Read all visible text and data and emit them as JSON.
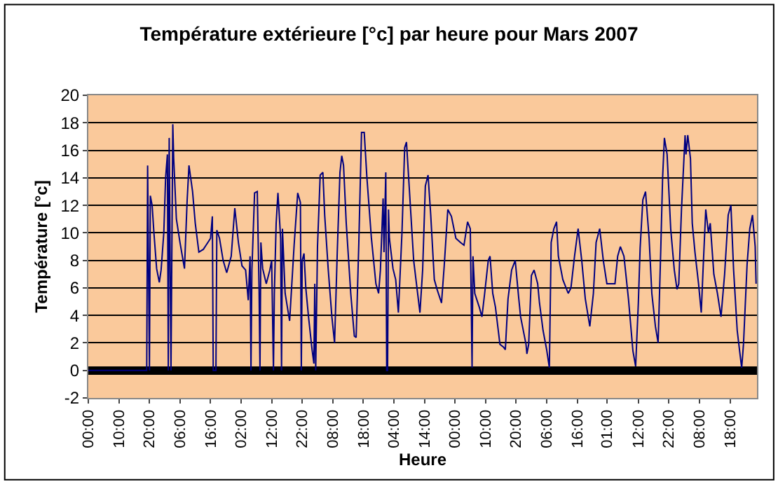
{
  "chart_data": {
    "type": "line",
    "title": "Température extérieure [°c] par heure pour Mars 2007",
    "xlabel": "Heure",
    "ylabel": "Température [°c]",
    "x": [
      "2007-03-01T00:00",
      "2007-03-03T17:00",
      "2007-03-03T18:00",
      "2007-03-03T19:00",
      "2007-03-03T20:00",
      "2007-03-03T21:00",
      "2007-03-03T23:00",
      "2007-03-04T01:00",
      "2007-03-04T04:00",
      "2007-03-04T07:00",
      "2007-03-04T09:00",
      "2007-03-04T12:00",
      "2007-03-04T14:00",
      "2007-03-04T16:00",
      "2007-03-04T17:00",
      "2007-03-04T18:00",
      "2007-03-04T19:00",
      "2007-03-04T20:00",
      "2007-03-04T22:00",
      "2007-03-04T23:00",
      "2007-03-05T02:00",
      "2007-03-05T06:00",
      "2007-03-05T11:00",
      "2007-03-05T14:00",
      "2007-03-05T16:00",
      "2007-03-05T20:00",
      "2007-03-05T23:00",
      "2007-03-06T03:00",
      "2007-03-06T08:00",
      "2007-03-06T11:00",
      "2007-03-06T16:00",
      "2007-03-06T18:00",
      "2007-03-06T19:00",
      "2007-03-06T22:00",
      "2007-03-06T23:00",
      "2007-03-07T02:00",
      "2007-03-07T06:00",
      "2007-03-07T10:00",
      "2007-03-07T15:00",
      "2007-03-07T19:00",
      "2007-03-07T23:00",
      "2007-03-08T03:00",
      "2007-03-08T07:00",
      "2007-03-08T10:00",
      "2007-03-08T12:00",
      "2007-03-08T13:00",
      "2007-03-08T14:00",
      "2007-03-08T17:00",
      "2007-03-08T20:00",
      "2007-03-08T22:00",
      "2007-03-08T23:00",
      "2007-03-09T00:00",
      "2007-03-09T02:00",
      "2007-03-09T06:00",
      "2007-03-09T10:00",
      "2007-03-09T12:00",
      "2007-03-09T14:00",
      "2007-03-09T15:00",
      "2007-03-09T17:00",
      "2007-03-09T19:00",
      "2007-03-09T22:00",
      "2007-03-09T23:00",
      "2007-03-10T00:00",
      "2007-03-10T03:00",
      "2007-03-10T06:00",
      "2007-03-10T08:00",
      "2007-03-10T13:00",
      "2007-03-10T17:00",
      "2007-03-10T20:00",
      "2007-03-10T21:00",
      "2007-03-10T22:00",
      "2007-03-11T00:00",
      "2007-03-11T02:00",
      "2007-03-11T05:00",
      "2007-03-11T09:00",
      "2007-03-11T11:00",
      "2007-03-11T12:00",
      "2007-03-11T13:00",
      "2007-03-11T15:00",
      "2007-03-11T18:00",
      "2007-03-11T21:00",
      "2007-03-11T23:00",
      "2007-03-12T03:00",
      "2007-03-12T07:00",
      "2007-03-12T10:00",
      "2007-03-12T13:00",
      "2007-03-12T16:00",
      "2007-03-12T18:00",
      "2007-03-12T20:00",
      "2007-03-12T23:00",
      "2007-03-13T04:00",
      "2007-03-13T08:00",
      "2007-03-13T10:00",
      "2007-03-13T13:00",
      "2007-03-13T16:00",
      "2007-03-13T19:00",
      "2007-03-13T22:00",
      "2007-03-14T03:00",
      "2007-03-14T08:00",
      "2007-03-14T11:00",
      "2007-03-14T13:00",
      "2007-03-14T16:00",
      "2007-03-14T17:00",
      "2007-03-14T19:00",
      "2007-03-14T20:00",
      "2007-03-14T21:00",
      "2007-03-14T22:00",
      "2007-03-14T23:00",
      "2007-03-15T03:00",
      "2007-03-15T06:00",
      "2007-03-15T09:00",
      "2007-03-15T13:00",
      "2007-03-15T16:00",
      "2007-03-15T18:00",
      "2007-03-15T21:00",
      "2007-03-16T02:00",
      "2007-03-16T09:00",
      "2007-03-16T12:00",
      "2007-03-16T15:00",
      "2007-03-16T18:00",
      "2007-03-16T21:00",
      "2007-03-17T01:00",
      "2007-03-17T04:00",
      "2007-03-17T09:00",
      "2007-03-17T12:00",
      "2007-03-17T16:00",
      "2007-03-17T20:00",
      "2007-03-18T01:00",
      "2007-03-18T06:00",
      "2007-03-18T10:00",
      "2007-03-18T14:00",
      "2007-03-18T17:00",
      "2007-03-18T19:00",
      "2007-03-18T20:00",
      "2007-03-18T22:00",
      "2007-03-19T03:00",
      "2007-03-19T06:00",
      "2007-03-19T09:00",
      "2007-03-19T13:00",
      "2007-03-19T15:00",
      "2007-03-19T18:00",
      "2007-03-19T21:00",
      "2007-03-20T02:00",
      "2007-03-20T06:00",
      "2007-03-20T08:00",
      "2007-03-20T11:00",
      "2007-03-20T15:00",
      "2007-03-20T19:00",
      "2007-03-20T23:00",
      "2007-03-21T01:00",
      "2007-03-21T07:00",
      "2007-03-21T08:00",
      "2007-03-21T10:00",
      "2007-03-21T13:00",
      "2007-03-21T16:00",
      "2007-03-21T20:00",
      "2007-03-21T22:00",
      "2007-03-22T02:00",
      "2007-03-22T06:00",
      "2007-03-22T09:00",
      "2007-03-22T11:00",
      "2007-03-22T14:00",
      "2007-03-22T17:00",
      "2007-03-22T19:00",
      "2007-03-23T00:00",
      "2007-03-23T06:00",
      "2007-03-23T09:00",
      "2007-03-23T13:00",
      "2007-03-23T17:00",
      "2007-03-23T21:00",
      "2007-03-24T01:00",
      "2007-03-24T06:00",
      "2007-03-24T10:00",
      "2007-03-24T13:00",
      "2007-03-24T17:00",
      "2007-03-24T21:00",
      "2007-03-25T01:00",
      "2007-03-25T05:00",
      "2007-03-25T10:00",
      "2007-03-25T13:00",
      "2007-03-25T16:00",
      "2007-03-25T20:00",
      "2007-03-26T01:00",
      "2007-03-26T06:00",
      "2007-03-26T09:00",
      "2007-03-26T12:00",
      "2007-03-26T14:00",
      "2007-03-26T17:00",
      "2007-03-26T20:00",
      "2007-03-27T00:00",
      "2007-03-27T03:00",
      "2007-03-27T07:00",
      "2007-03-27T10:00",
      "2007-03-27T13:00",
      "2007-03-27T15:00",
      "2007-03-27T17:00",
      "2007-03-27T20:00",
      "2007-03-28T00:00",
      "2007-03-28T04:00",
      "2007-03-28T07:00",
      "2007-03-28T09:00",
      "2007-03-28T12:00",
      "2007-03-28T16:00",
      "2007-03-28T17:00",
      "2007-03-28T19:00",
      "2007-03-28T22:00",
      "2007-03-29T00:00",
      "2007-03-29T03:00",
      "2007-03-29T07:00",
      "2007-03-29T10:00",
      "2007-03-29T12:00",
      "2007-03-29T15:00",
      "2007-03-29T18:00",
      "2007-03-29T20:00",
      "2007-03-30T00:00",
      "2007-03-30T04:00",
      "2007-03-30T08:00",
      "2007-03-30T12:00",
      "2007-03-30T16:00",
      "2007-03-30T19:00",
      "2007-03-30T22:00",
      "2007-03-31T02:00",
      "2007-03-31T06:00",
      "2007-03-31T07:00",
      "2007-03-31T09:00",
      "2007-03-31T13:00",
      "2007-03-31T16:00",
      "2007-03-31T19:00",
      "2007-03-31T22:00",
      "2007-03-31T23:00"
    ],
    "series": [
      {
        "color": "#000080",
        "values": [
          0,
          0,
          14.9,
          7.4,
          0,
          12.7,
          12,
          10,
          7.4,
          6.4,
          7.3,
          10,
          14,
          15.7,
          0,
          16.9,
          8.3,
          0,
          17.9,
          15.4,
          11,
          9.3,
          7.4,
          12.4,
          14.9,
          13,
          10.7,
          8.6,
          8.8,
          9.1,
          9.6,
          11.2,
          0,
          0,
          10.2,
          9.6,
          8,
          7.1,
          8.3,
          11.8,
          9.3,
          7.6,
          7.3,
          5.1,
          8.3,
          0,
          7.3,
          12.9,
          13,
          5.9,
          0,
          9.3,
          7.4,
          6.3,
          7.3,
          8,
          0,
          5.6,
          10.7,
          12.9,
          9.6,
          0,
          10.3,
          5.6,
          4.4,
          3.6,
          9.1,
          12.9,
          12.2,
          0,
          8,
          8.5,
          6,
          3.9,
          1.5,
          0.5,
          6.3,
          0,
          9,
          14.2,
          14.4,
          11.3,
          7.3,
          3.9,
          2,
          8.6,
          14.4,
          15.6,
          14.9,
          10.7,
          5.6,
          2.5,
          2.4,
          9.3,
          17.3,
          17.3,
          14,
          9.6,
          6.3,
          5.6,
          7.3,
          12.5,
          8.6,
          14.4,
          0,
          0,
          11.7,
          9.6,
          7.4,
          6.6,
          4.2,
          10,
          16.2,
          16.6,
          13.4,
          8,
          4.2,
          7.3,
          13.4,
          14.2,
          11.3,
          6.6,
          5.9,
          4.9,
          7.6,
          11.7,
          11.2,
          9.6,
          9.3,
          9.1,
          10.8,
          10.3,
          0.2,
          8.3,
          5.6,
          4.6,
          3.9,
          5.6,
          8,
          8.3,
          5.6,
          4.6,
          1.9,
          1.7,
          1.5,
          5.2,
          7.3,
          8,
          5.2,
          3.9,
          1.9,
          1.2,
          1.9,
          6.9,
          7.3,
          6.3,
          4.9,
          2.9,
          1.5,
          0.2,
          9.3,
          10.3,
          10.8,
          8.3,
          6.6,
          5.6,
          6,
          8.3,
          10.3,
          8,
          5.2,
          3.2,
          5.6,
          9.3,
          10.3,
          8,
          6.3,
          6.3,
          6.3,
          8.3,
          9,
          8.3,
          5.2,
          1.4,
          0.3,
          4.9,
          8.9,
          12.4,
          13,
          9.6,
          5.6,
          3.2,
          2,
          8.9,
          14,
          16.9,
          15.7,
          10.3,
          7.3,
          5.9,
          6.3,
          11.7,
          17.1,
          15.7,
          17.1,
          15.4,
          10.7,
          8.6,
          6.3,
          4.2,
          7.3,
          11.7,
          10,
          10.7,
          7,
          5.6,
          3.9,
          7,
          11.3,
          12,
          7.3,
          2.9,
          0.7,
          0.2,
          1.9,
          7.7,
          10.3,
          11.3,
          9,
          6.3
        ]
      }
    ],
    "xlim": [
      "2007-03-01T00:00",
      "2007-04-01T00:00"
    ],
    "xticks": [
      {
        "value": "2007-03-01T00:00",
        "label": "00:00"
      },
      {
        "value": "2007-03-02T10:00",
        "label": "10:00"
      },
      {
        "value": "2007-03-03T20:00",
        "label": "20:00"
      },
      {
        "value": "2007-03-05T06:00",
        "label": "06:00"
      },
      {
        "value": "2007-03-06T16:00",
        "label": "16:00"
      },
      {
        "value": "2007-03-08T02:00",
        "label": "02:00"
      },
      {
        "value": "2007-03-09T12:00",
        "label": "12:00"
      },
      {
        "value": "2007-03-10T22:00",
        "label": "22:00"
      },
      {
        "value": "2007-03-12T08:00",
        "label": "08:00"
      },
      {
        "value": "2007-03-13T18:00",
        "label": "18:00"
      },
      {
        "value": "2007-03-15T04:00",
        "label": "04:00"
      },
      {
        "value": "2007-03-16T14:00",
        "label": "14:00"
      },
      {
        "value": "2007-03-18T00:00",
        "label": "00:00"
      },
      {
        "value": "2007-03-19T10:00",
        "label": "10:00"
      },
      {
        "value": "2007-03-20T20:00",
        "label": "20:00"
      },
      {
        "value": "2007-03-22T06:00",
        "label": "06:00"
      },
      {
        "value": "2007-03-23T16:00",
        "label": "16:00"
      },
      {
        "value": "2007-03-25T01:00",
        "label": "01:00"
      },
      {
        "value": "2007-03-26T12:00",
        "label": "12:00"
      },
      {
        "value": "2007-03-27T22:00",
        "label": "22:00"
      },
      {
        "value": "2007-03-29T08:00",
        "label": "08:00"
      },
      {
        "value": "2007-03-30T18:00",
        "label": "18:00"
      }
    ],
    "ylim": [
      -2,
      20
    ],
    "yticks": [
      -2,
      0,
      2,
      4,
      6,
      8,
      10,
      12,
      14,
      16,
      18,
      20
    ],
    "grid": "y",
    "legend": false,
    "marker": "none",
    "line_style": "solid"
  }
}
